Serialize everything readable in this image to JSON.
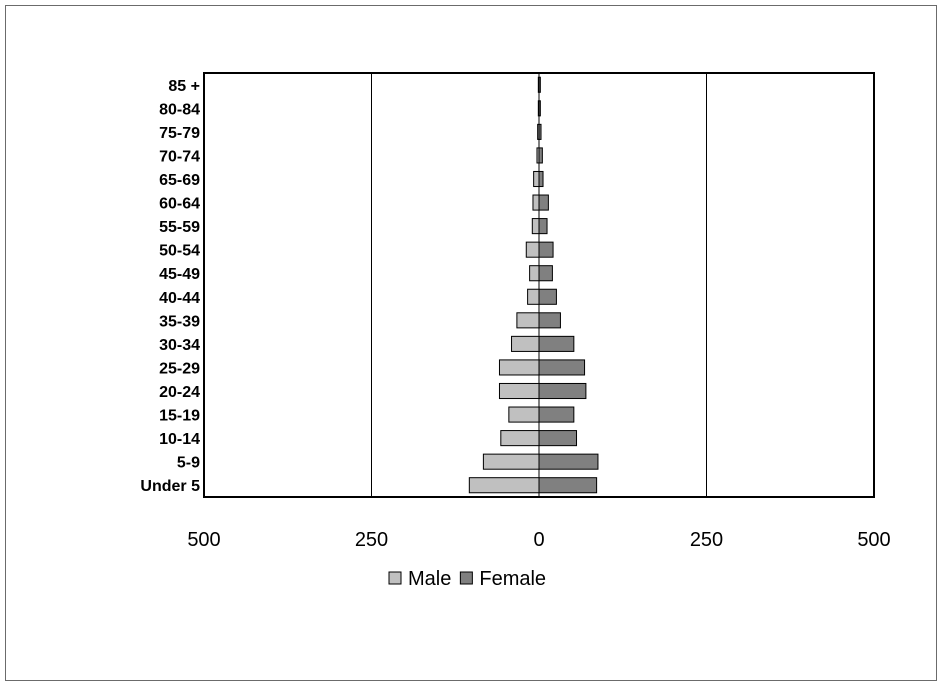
{
  "chart_data": {
    "type": "bar",
    "orientation": "horizontal",
    "layout": "population-pyramid",
    "categories": [
      "Under 5",
      "5-9",
      "10-14",
      "15-19",
      "20-24",
      "25-29",
      "30-34",
      "35-39",
      "40-44",
      "45-49",
      "50-54",
      "55-59",
      "60-64",
      "65-69",
      "70-74",
      "75-79",
      "80-84",
      "85 +"
    ],
    "series": [
      {
        "name": "Male",
        "color": "#c0c0c0",
        "direction": "left",
        "values": [
          104,
          83,
          57,
          45,
          59,
          59,
          41,
          33,
          17,
          14,
          19,
          10,
          9,
          8,
          3,
          2,
          1,
          1
        ]
      },
      {
        "name": "Female",
        "color": "#808080",
        "direction": "right",
        "values": [
          86,
          88,
          56,
          52,
          70,
          68,
          52,
          32,
          26,
          20,
          21,
          12,
          14,
          6,
          5,
          3,
          2,
          2
        ]
      }
    ],
    "xlim": [
      -500,
      500
    ],
    "xticks": [
      -500,
      -250,
      0,
      250,
      500
    ],
    "xtick_labels": [
      "500",
      "250",
      "0",
      "250",
      "500"
    ],
    "grid": "vertical major gridlines",
    "legend": "bottom-center"
  }
}
